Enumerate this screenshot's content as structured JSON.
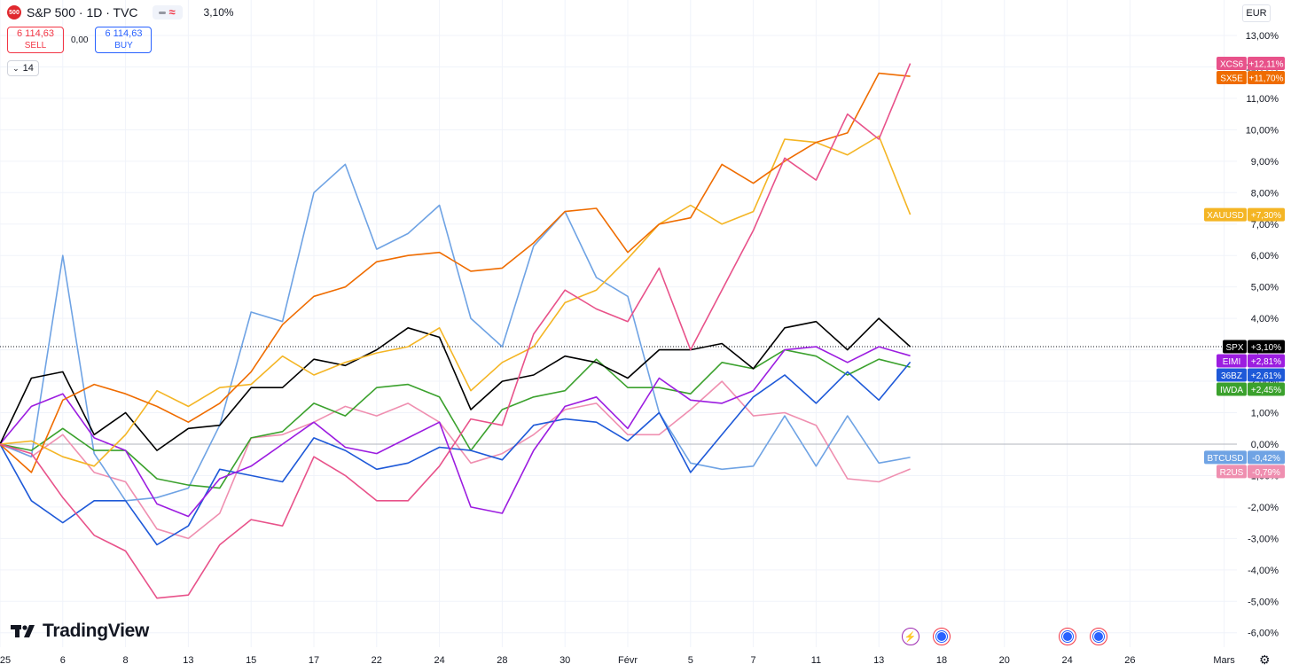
{
  "header": {
    "symbol_badge": "500",
    "title": "S&P 500 · 1D · TVC",
    "change": "3,10%"
  },
  "trade": {
    "sell_price": "6 114,63",
    "sell_label": "SELL",
    "spread": "0,00",
    "buy_price": "6 114,63",
    "buy_label": "BUY"
  },
  "indicators": {
    "count": "14"
  },
  "currency": "EUR",
  "branding": {
    "logo_text": "TradingView"
  },
  "events": [
    {
      "icon": "dividend-icon",
      "date_index": 29
    },
    {
      "icon": "earnings-flag-icon",
      "date_index": 30
    },
    {
      "icon": "earnings-flag-icon",
      "date_index": 34
    },
    {
      "icon": "earnings-flag-icon",
      "date_index": 35
    }
  ],
  "chart_data": {
    "type": "line",
    "y_unit": "%",
    "ylim": [
      -6.4,
      13.5
    ],
    "y_ticks": [
      "13,00%",
      "12,00%",
      "11,00%",
      "10,00%",
      "9,00%",
      "8,00%",
      "7,00%",
      "6,00%",
      "5,00%",
      "4,00%",
      "3,00%",
      "2,00%",
      "1,00%",
      "0,00%",
      "-1,00%",
      "-2,00%",
      "-3,00%",
      "-4,00%",
      "-5,00%",
      "-6,00%"
    ],
    "x_ticks": [
      {
        "label": "25",
        "slot": 0
      },
      {
        "label": "6",
        "slot": 2
      },
      {
        "label": "8",
        "slot": 4
      },
      {
        "label": "13",
        "slot": 6
      },
      {
        "label": "15",
        "slot": 8
      },
      {
        "label": "17",
        "slot": 10
      },
      {
        "label": "22",
        "slot": 12
      },
      {
        "label": "24",
        "slot": 14
      },
      {
        "label": "28",
        "slot": 16
      },
      {
        "label": "30",
        "slot": 18
      },
      {
        "label": "Févr",
        "slot": 20
      },
      {
        "label": "5",
        "slot": 22
      },
      {
        "label": "7",
        "slot": 24
      },
      {
        "label": "11",
        "slot": 26
      },
      {
        "label": "13",
        "slot": 28
      },
      {
        "label": "18",
        "slot": 30
      },
      {
        "label": "20",
        "slot": 32
      },
      {
        "label": "24",
        "slot": 34
      },
      {
        "label": "26",
        "slot": 36
      },
      {
        "label": "Mars",
        "slot": 39
      }
    ],
    "last_slot": 29,
    "current_value_line": 3.1,
    "series": [
      {
        "name": "XCS6",
        "color": "#e8528a",
        "label": "+12,11%",
        "values": [
          0,
          -0.3,
          -1.7,
          -2.9,
          -3.4,
          -4.9,
          -4.8,
          -3.2,
          -2.4,
          -2.6,
          -0.4,
          -1.0,
          -1.8,
          -1.8,
          -0.7,
          0.8,
          0.6,
          3.5,
          4.9,
          4.3,
          3.9,
          5.6,
          3.0,
          4.9,
          6.8,
          9.1,
          8.4,
          10.5,
          9.7,
          12.11
        ]
      },
      {
        "name": "SX5E",
        "color": "#ef6c00",
        "label": "+11,70%",
        "values": [
          0,
          -0.9,
          1.4,
          1.9,
          1.6,
          1.2,
          0.7,
          1.3,
          2.3,
          3.8,
          4.7,
          5.0,
          5.8,
          6.0,
          6.1,
          5.5,
          5.6,
          6.4,
          7.4,
          7.5,
          6.1,
          7.0,
          7.2,
          8.9,
          8.3,
          9.0,
          9.6,
          9.9,
          11.8,
          11.7
        ]
      },
      {
        "name": "XAUUSD",
        "color": "#f4b524",
        "label": "+7,30%",
        "values": [
          0,
          0.1,
          -0.4,
          -0.7,
          0.3,
          1.7,
          1.2,
          1.8,
          1.9,
          2.8,
          2.2,
          2.6,
          2.9,
          3.1,
          3.7,
          1.7,
          2.6,
          3.1,
          4.5,
          4.9,
          5.9,
          7.0,
          7.6,
          7.0,
          7.4,
          9.7,
          9.6,
          9.2,
          9.8,
          7.3
        ]
      },
      {
        "name": "SPX",
        "color": "#000000",
        "label": "+3,10%",
        "values": [
          0,
          2.1,
          2.3,
          0.3,
          1.0,
          -0.2,
          0.5,
          0.6,
          1.8,
          1.8,
          2.7,
          2.5,
          3.0,
          3.7,
          3.4,
          1.1,
          2.0,
          2.2,
          2.8,
          2.6,
          2.1,
          3.0,
          3.0,
          3.2,
          2.4,
          3.7,
          3.9,
          3.0,
          4.0,
          3.1
        ]
      },
      {
        "name": "EIMI",
        "color": "#9c1de0",
        "label": "+2,81%",
        "values": [
          0,
          1.2,
          1.6,
          0.2,
          -0.2,
          -1.9,
          -2.3,
          -1.1,
          -0.7,
          -0.0,
          0.7,
          -0.1,
          -0.3,
          0.2,
          0.7,
          -2.0,
          -2.2,
          -0.2,
          1.2,
          1.5,
          0.5,
          2.1,
          1.4,
          1.3,
          1.7,
          3.0,
          3.1,
          2.6,
          3.1,
          2.81
        ]
      },
      {
        "name": "36BZ",
        "color": "#1e59d8",
        "label": "+2,61%",
        "values": [
          0,
          -1.8,
          -2.5,
          -1.8,
          -1.8,
          -3.2,
          -2.6,
          -0.8,
          -1.0,
          -1.2,
          0.2,
          -0.2,
          -0.8,
          -0.6,
          -0.1,
          -0.2,
          -0.5,
          0.6,
          0.8,
          0.7,
          0.1,
          1.0,
          -0.9,
          0.3,
          1.5,
          2.2,
          1.3,
          2.3,
          1.4,
          2.61
        ]
      },
      {
        "name": "IWDA",
        "color": "#3ba12d",
        "label": "+2,45%",
        "values": [
          0,
          -0.2,
          0.5,
          -0.2,
          -0.2,
          -1.1,
          -1.3,
          -1.4,
          0.2,
          0.4,
          1.3,
          0.9,
          1.8,
          1.9,
          1.5,
          -0.2,
          1.1,
          1.5,
          1.7,
          2.7,
          1.8,
          1.8,
          1.6,
          2.6,
          2.4,
          3.0,
          2.8,
          2.2,
          2.7,
          2.45
        ]
      },
      {
        "name": "BTCUSD",
        "color": "#6fa3e4",
        "label": "-0,42%",
        "values": [
          0,
          -0.4,
          6.0,
          -0.3,
          -1.8,
          -1.7,
          -1.4,
          0.6,
          4.2,
          3.9,
          8.0,
          8.9,
          6.2,
          6.7,
          7.6,
          4.0,
          3.1,
          6.3,
          7.4,
          5.3,
          4.7,
          1.0,
          -0.6,
          -0.8,
          -0.7,
          0.9,
          -0.7,
          0.9,
          -0.6,
          -0.42
        ]
      },
      {
        "name": "R2US",
        "color": "#ef8fb0",
        "label": "-0,79%",
        "values": [
          0,
          -0.4,
          0.3,
          -0.9,
          -1.2,
          -2.7,
          -3.0,
          -2.2,
          0.2,
          0.3,
          0.7,
          1.2,
          0.9,
          1.3,
          0.7,
          -0.6,
          -0.3,
          0.3,
          1.1,
          1.3,
          0.3,
          0.3,
          1.1,
          2.0,
          0.9,
          1.0,
          0.6,
          -1.1,
          -1.2,
          -0.79
        ]
      }
    ]
  }
}
